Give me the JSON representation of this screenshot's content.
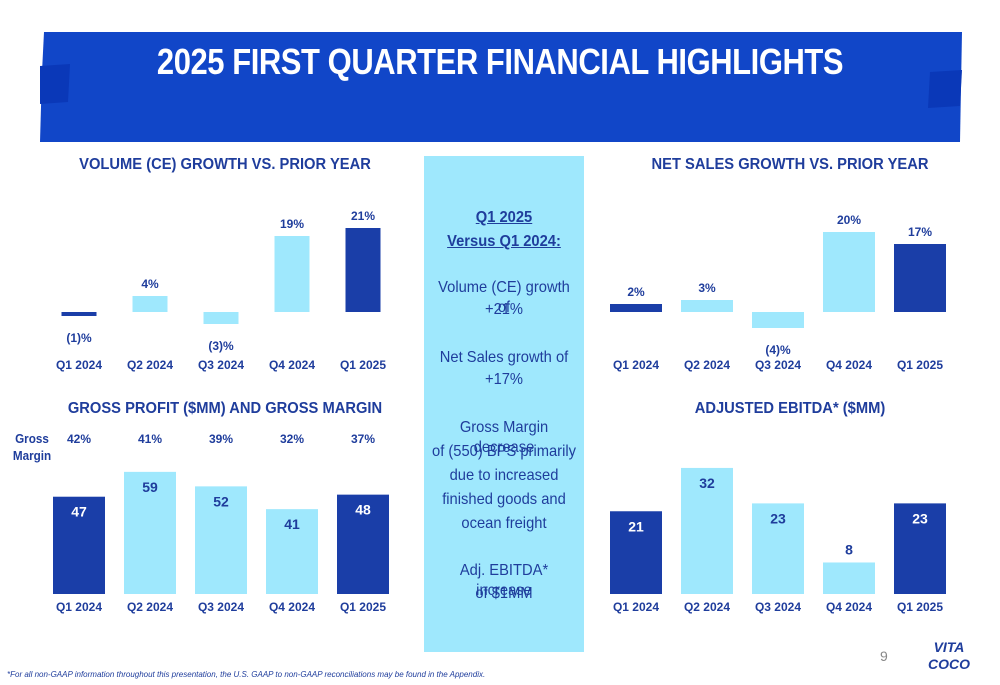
{
  "slide": {
    "title": "2025 FIRST QUARTER FINANCIAL HIGHLIGHTS",
    "page_number": "9",
    "footnote": "*For all non-GAAP information throughout this presentation, the U.S. GAAP to non-GAAP reconciliations may be found in the Appendix.",
    "logo_text_top": "VITA",
    "logo_text_bottom": "COCO",
    "colors": {
      "dark_blue": "#1a3ea8",
      "light_blue": "#9fe8fd",
      "title_blue": "#1f3d9c",
      "banner_blue": "#1146c8"
    }
  },
  "center_panel": {
    "heading_line1": "Q1 2025",
    "heading_line2": "Versus Q1 2024:",
    "items": [
      [
        "Volume (CE) growth of",
        "+21%"
      ],
      [
        "Net Sales growth of",
        "+17%"
      ],
      [
        "Gross Margin decrease",
        "of (550) BPS primarily",
        "due to increased",
        "finished goods and",
        "ocean freight"
      ],
      [
        "Adj. EBITDA* increase",
        "of $1MM"
      ]
    ]
  },
  "gross_margin_label": [
    "Gross",
    "Margin"
  ],
  "chart_data": [
    {
      "type": "bar",
      "title": "VOLUME (CE) GROWTH VS. PRIOR YEAR",
      "categories": [
        "Q1 2024",
        "Q2 2024",
        "Q3 2024",
        "Q4 2024",
        "Q1 2025"
      ],
      "values": [
        -1,
        4,
        -3,
        19,
        21
      ],
      "data_labels": [
        "(1)%",
        "4%",
        "(3)%",
        "19%",
        "21%"
      ],
      "highlight": [
        true,
        false,
        false,
        false,
        true
      ],
      "grid": false
    },
    {
      "type": "bar",
      "title": "NET SALES GROWTH VS. PRIOR YEAR",
      "categories": [
        "Q1 2024",
        "Q2 2024",
        "Q3 2024",
        "Q4 2024",
        "Q1 2025"
      ],
      "values": [
        2,
        3,
        -4,
        20,
        17
      ],
      "data_labels": [
        "2%",
        "3%",
        "(4)%",
        "20%",
        "17%"
      ],
      "highlight": [
        true,
        false,
        false,
        false,
        true
      ],
      "grid": false
    },
    {
      "type": "bar",
      "title": "GROSS PROFIT ($MM) AND GROSS MARGIN",
      "categories": [
        "Q1 2024",
        "Q2 2024",
        "Q3 2024",
        "Q4 2024",
        "Q1 2025"
      ],
      "values": [
        47,
        59,
        52,
        41,
        48
      ],
      "data_labels": [
        "47",
        "59",
        "52",
        "41",
        "48"
      ],
      "gross_margin": [
        "42%",
        "41%",
        "39%",
        "32%",
        "37%"
      ],
      "highlight": [
        true,
        false,
        false,
        false,
        true
      ],
      "grid": false
    },
    {
      "type": "bar",
      "title": "ADJUSTED EBITDA* ($MM)",
      "categories": [
        "Q1 2024",
        "Q2 2024",
        "Q3 2024",
        "Q4 2024",
        "Q1 2025"
      ],
      "values": [
        21,
        32,
        23,
        8,
        23
      ],
      "data_labels": [
        "21",
        "32",
        "23",
        "8",
        "23"
      ],
      "highlight": [
        true,
        false,
        false,
        false,
        true
      ],
      "grid": false
    }
  ]
}
